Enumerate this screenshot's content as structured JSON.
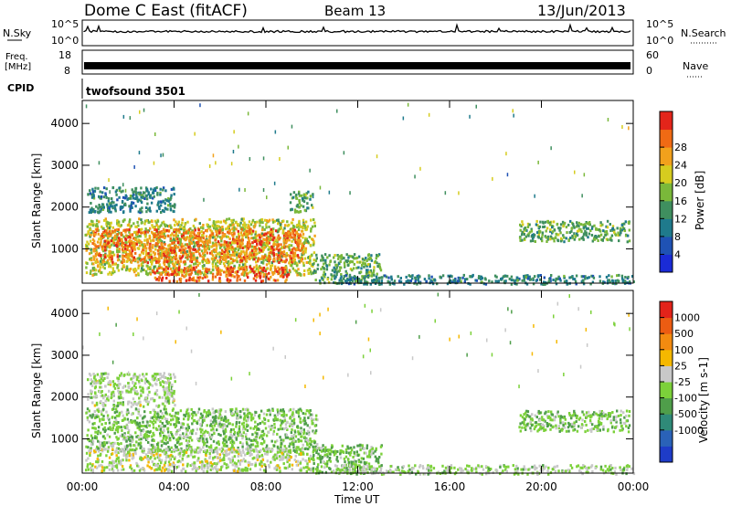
{
  "header": {
    "station": "Dome C East (fitACF)",
    "beam": "Beam 13",
    "date": "13/Jun/2013"
  },
  "panels": {
    "nsky": {
      "label": "N.Sky",
      "right_label": "N.Search",
      "ticks": [
        "10^5",
        "10^0"
      ]
    },
    "freq": {
      "label_line1": "Freq.",
      "label_line2": "[MHz]",
      "right_label": "Nave",
      "ticks_left": [
        "18",
        "8"
      ],
      "ticks_right": [
        "60",
        "0"
      ]
    },
    "cpid": {
      "label": "CPID",
      "value": "twofsound 3501"
    }
  },
  "chart_data": [
    {
      "type": "heatmap",
      "title": "",
      "ylabel": "Slant Range [km]",
      "xlabel": "",
      "x_ticks": [
        "00:00",
        "04:00",
        "08:00",
        "12:00",
        "16:00",
        "20:00",
        "00:00"
      ],
      "y_ticks": [
        1000,
        2000,
        3000,
        4000
      ],
      "ylim": [
        180,
        4550
      ],
      "xlim_hours": [
        0,
        24
      ],
      "colorbar": {
        "label": "Power [dB]",
        "ticks": [
          "4",
          "8",
          "12",
          "16",
          "20",
          "24",
          "28"
        ],
        "range": [
          0,
          32
        ],
        "colors": [
          "#1a2bd6",
          "#1f52b4",
          "#1f7a8c",
          "#3f8f5f",
          "#7ab83a",
          "#d6cc1f",
          "#f2a11c",
          "#f06a14",
          "#e3251a"
        ]
      },
      "regions": [
        {
          "t0": 0.1,
          "t1": 10.1,
          "r0": 400,
          "r1": 1750,
          "level": 18
        },
        {
          "t0": 0.4,
          "t1": 9.6,
          "r0": 700,
          "r1": 1500,
          "level": 26
        },
        {
          "t0": 3.0,
          "t1": 9.0,
          "r0": 250,
          "r1": 600,
          "level": 27
        },
        {
          "t0": 0.2,
          "t1": 4.0,
          "r0": 1900,
          "r1": 2500,
          "level": 10
        },
        {
          "t0": 9.0,
          "t1": 10.0,
          "r0": 1900,
          "r1": 2400,
          "level": 14
        },
        {
          "t0": 10.0,
          "t1": 13.0,
          "r0": 200,
          "r1": 900,
          "level": 14
        },
        {
          "t0": 11.0,
          "t1": 24.0,
          "r0": 180,
          "r1": 400,
          "level": 10
        },
        {
          "t0": 19.0,
          "t1": 23.8,
          "r0": 1200,
          "r1": 1700,
          "level": 14
        }
      ]
    },
    {
      "type": "heatmap",
      "title": "",
      "ylabel": "Slant Range [km]",
      "xlabel": "Time UT",
      "x_ticks": [
        "00:00",
        "04:00",
        "08:00",
        "12:00",
        "16:00",
        "20:00",
        "00:00"
      ],
      "y_ticks": [
        1000,
        2000,
        3000,
        4000
      ],
      "ylim": [
        180,
        4550
      ],
      "xlim_hours": [
        0,
        24
      ],
      "colorbar": {
        "label": "Velocity [m s-1]",
        "ticks": [
          "1000",
          "500",
          "100",
          "25",
          "-25",
          "-100",
          "-500",
          "-1000"
        ],
        "range": [
          -1200,
          1200
        ],
        "colors": [
          "#1e3cc8",
          "#2a62b8",
          "#2f8a78",
          "#4f9e4a",
          "#7cd13a",
          "#c8c8c8",
          "#f5b800",
          "#f38b10",
          "#ec5c12",
          "#e3231a"
        ]
      },
      "regions": [
        {
          "t0": 0.1,
          "t1": 10.2,
          "r0": 700,
          "r1": 1750,
          "level": -150
        },
        {
          "t0": 0.1,
          "t1": 10.0,
          "r0": 250,
          "r1": 800,
          "level": 60
        },
        {
          "t0": 0.2,
          "t1": 4.0,
          "r0": 1800,
          "r1": 2600,
          "level": 0
        },
        {
          "t0": 10.0,
          "t1": 13.0,
          "r0": 200,
          "r1": 900,
          "level": -200
        },
        {
          "t0": 11.0,
          "t1": 24.0,
          "r0": 180,
          "r1": 400,
          "level": -40
        },
        {
          "t0": 19.0,
          "t1": 23.8,
          "r0": 1200,
          "r1": 1700,
          "level": -150
        }
      ]
    }
  ]
}
